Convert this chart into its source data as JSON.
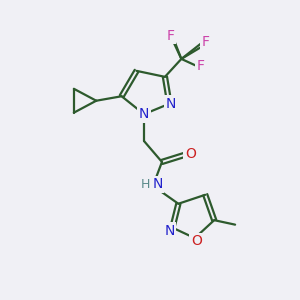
{
  "bg_color": "#f0f0f5",
  "bond_color": "#2d5a2d",
  "N_color": "#2222cc",
  "O_color": "#cc2222",
  "F_color": "#cc44aa",
  "H_color": "#5a8a8a",
  "line_width": 1.6,
  "font_size": 10,
  "fig_size": [
    3.0,
    3.0
  ],
  "dpi": 100,
  "xlim": [
    0,
    10
  ],
  "ylim": [
    0,
    10
  ]
}
